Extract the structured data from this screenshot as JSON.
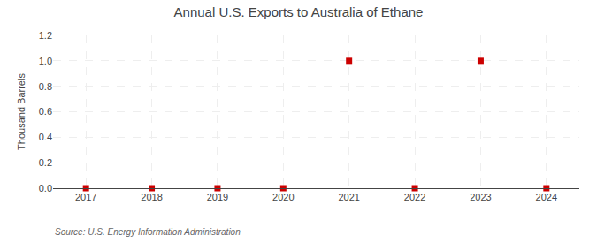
{
  "chart_data": {
    "type": "scatter",
    "title": "Annual U.S. Exports to Australia of Ethane",
    "ylabel": "Thousand Barrels",
    "annotations": [
      "Source: U.S. Energy Information Administration"
    ],
    "x": [
      2017,
      2018,
      2019,
      2020,
      2021,
      2022,
      2023,
      2024
    ],
    "values": [
      0,
      0,
      0,
      0,
      1,
      0,
      1,
      0
    ],
    "color": "#cc0000",
    "marker": "square",
    "xlim": [
      2016.5,
      2024.5
    ],
    "xticks": [
      2017,
      2018,
      2019,
      2020,
      2021,
      2022,
      2023,
      2024
    ],
    "ylim": [
      0.0,
      1.2
    ],
    "yticks": [
      {
        "value": 0.0,
        "label": "0.0"
      },
      0.2,
      0.4,
      0.6,
      0.8,
      {
        "value": 1.0,
        "label": "1.0"
      },
      1.2
    ],
    "grid": true
  }
}
